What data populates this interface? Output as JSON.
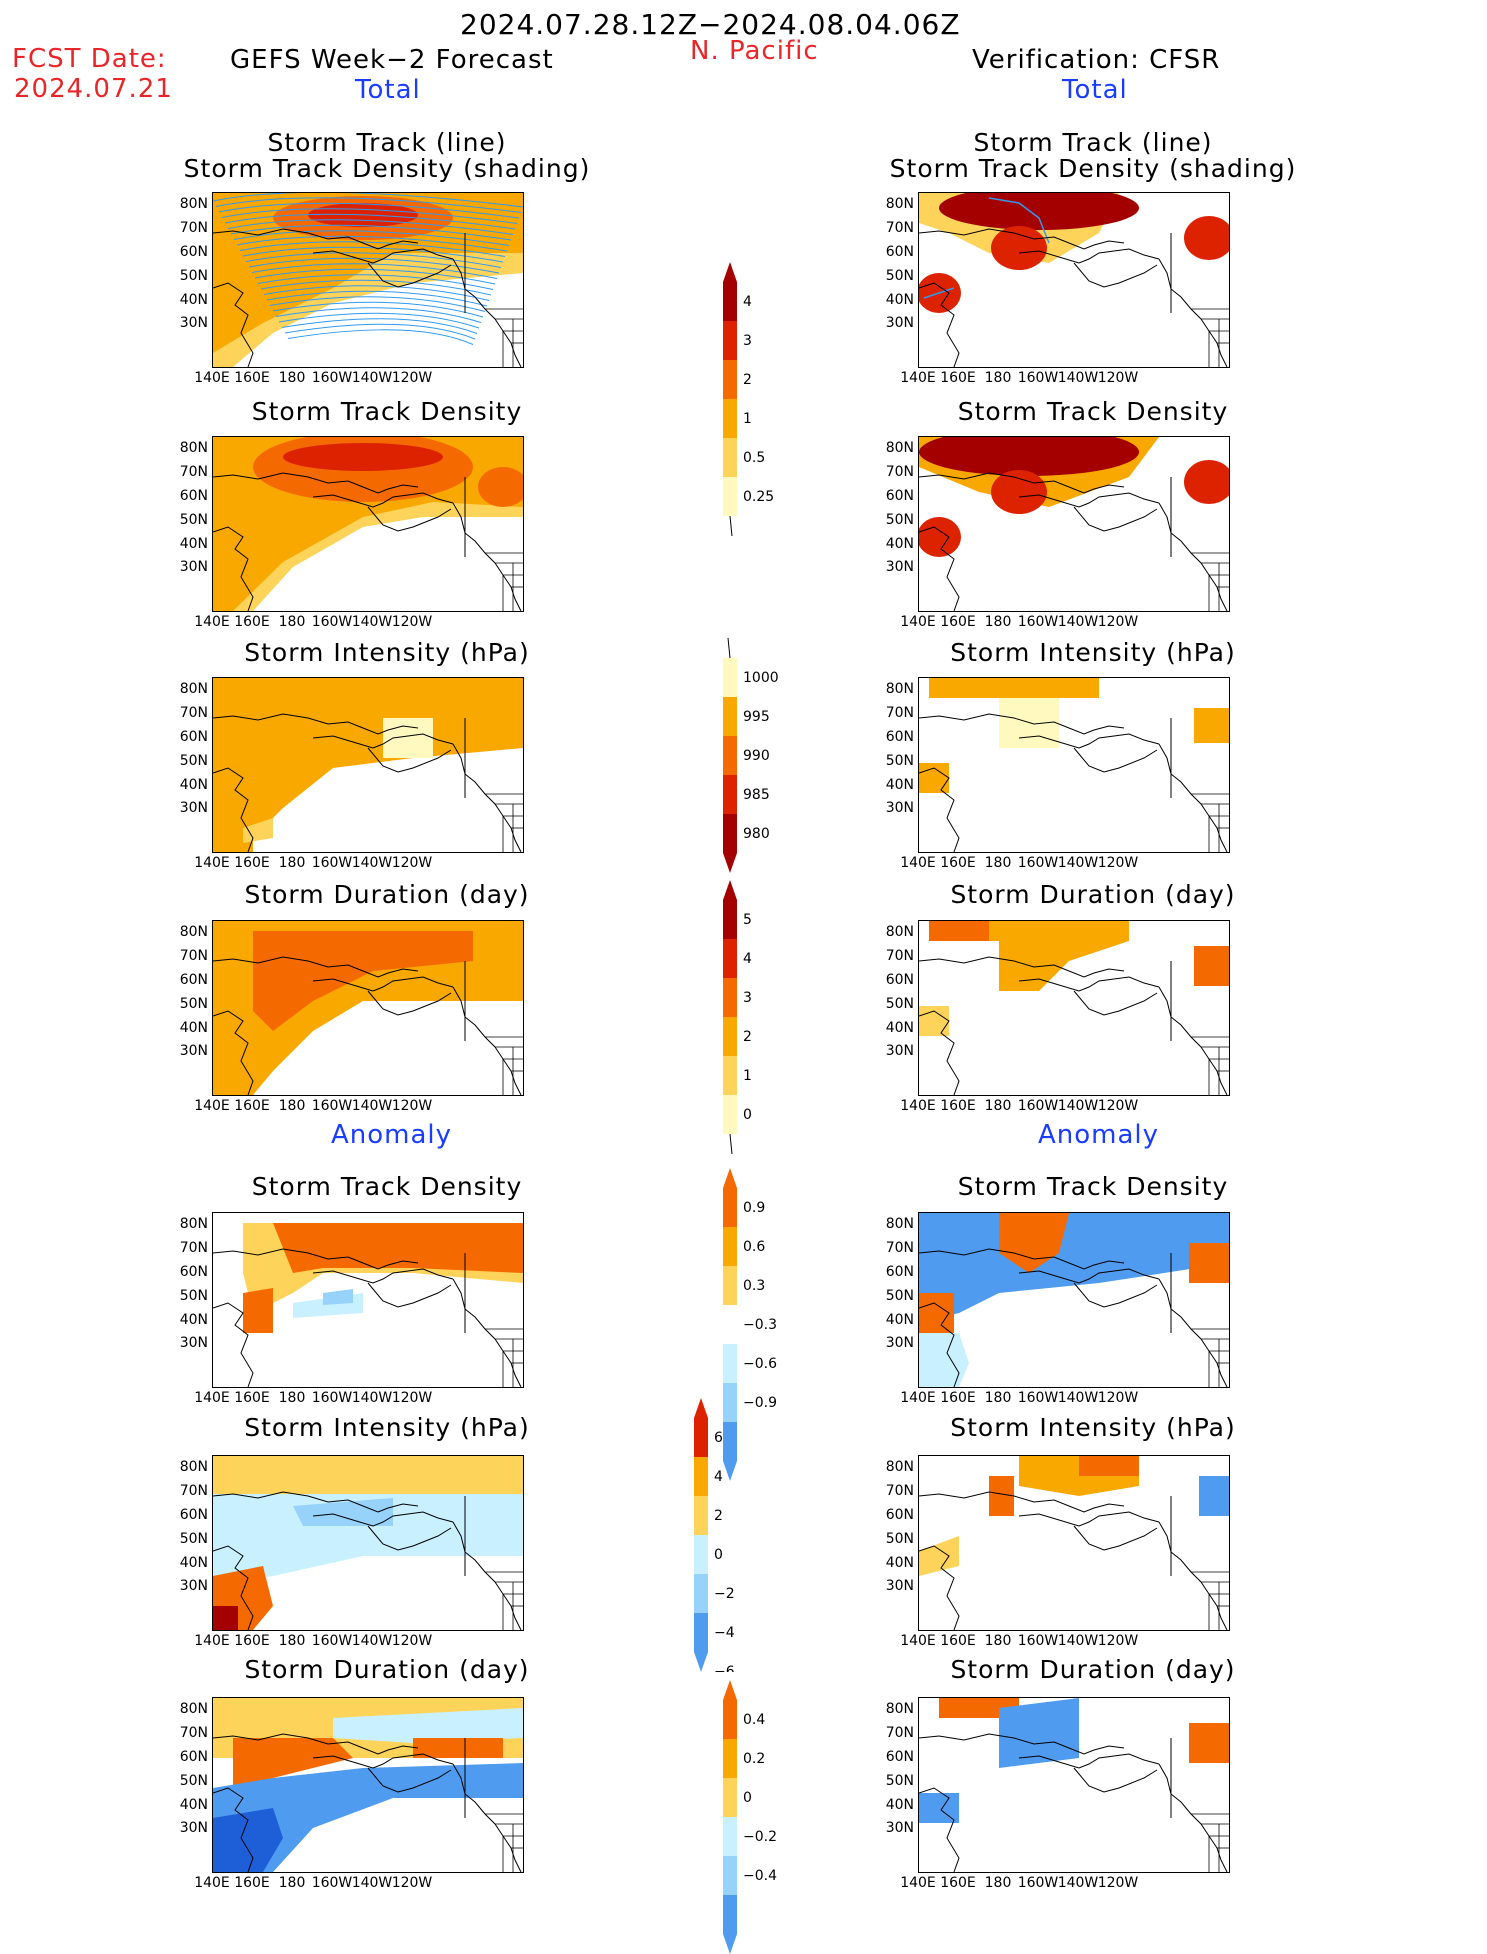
{
  "header": {
    "period": "2024.07.28.12Z−2024.08.04.06Z",
    "fcst_label": "FCST Date:",
    "fcst_date": "2024.07.21",
    "forecast_title": "GEFS Week−2 Forecast",
    "region": "N. Pacific",
    "verification_title": "Verification: CFSR",
    "total_left": "Total",
    "total_right": "Total",
    "anomaly_left": "Anomaly",
    "anomaly_right": "Anomaly"
  },
  "panel_titles": {
    "track_line": "Storm Track (line)",
    "track_shading": "Storm Track Density (shading)",
    "density": "Storm Track Density",
    "intensity": "Storm Intensity (hPa)",
    "duration": "Storm Duration (day)"
  },
  "axes": {
    "lat_labels": [
      "80N",
      "70N",
      "60N",
      "50N",
      "40N",
      "30N"
    ],
    "lon_labels": [
      "140E",
      "160E",
      "180",
      "160W",
      "140W",
      "120W"
    ]
  },
  "colorbars": {
    "density_total": [
      "4",
      "3",
      "2",
      "1",
      "0.5",
      "0.25"
    ],
    "intensity_total": [
      "1000",
      "995",
      "990",
      "985",
      "980"
    ],
    "duration_total": [
      "5",
      "4",
      "3",
      "2",
      "1",
      "0"
    ],
    "density_anom": [
      "0.9",
      "0.6",
      "0.3",
      "−0.3",
      "−0.6",
      "−0.9"
    ],
    "intensity_anom": [
      "6",
      "4",
      "2",
      "0",
      "−2",
      "−4",
      "−6"
    ],
    "duration_anom": [
      "0.4",
      "0.2",
      "0",
      "−0.2",
      "−0.4"
    ]
  },
  "colors": {
    "dark_red": "#a50000",
    "red": "#dd2200",
    "orange_red": "#f56a00",
    "orange": "#f9a800",
    "light_orange": "#fdd35a",
    "pale_yellow": "#fff9c0",
    "pale_blue": "#c8f0ff",
    "light_blue": "#96d2fa",
    "blue": "#4f9bf0",
    "dark_blue": "#1e5fd8",
    "track_line": "#3399ee"
  }
}
